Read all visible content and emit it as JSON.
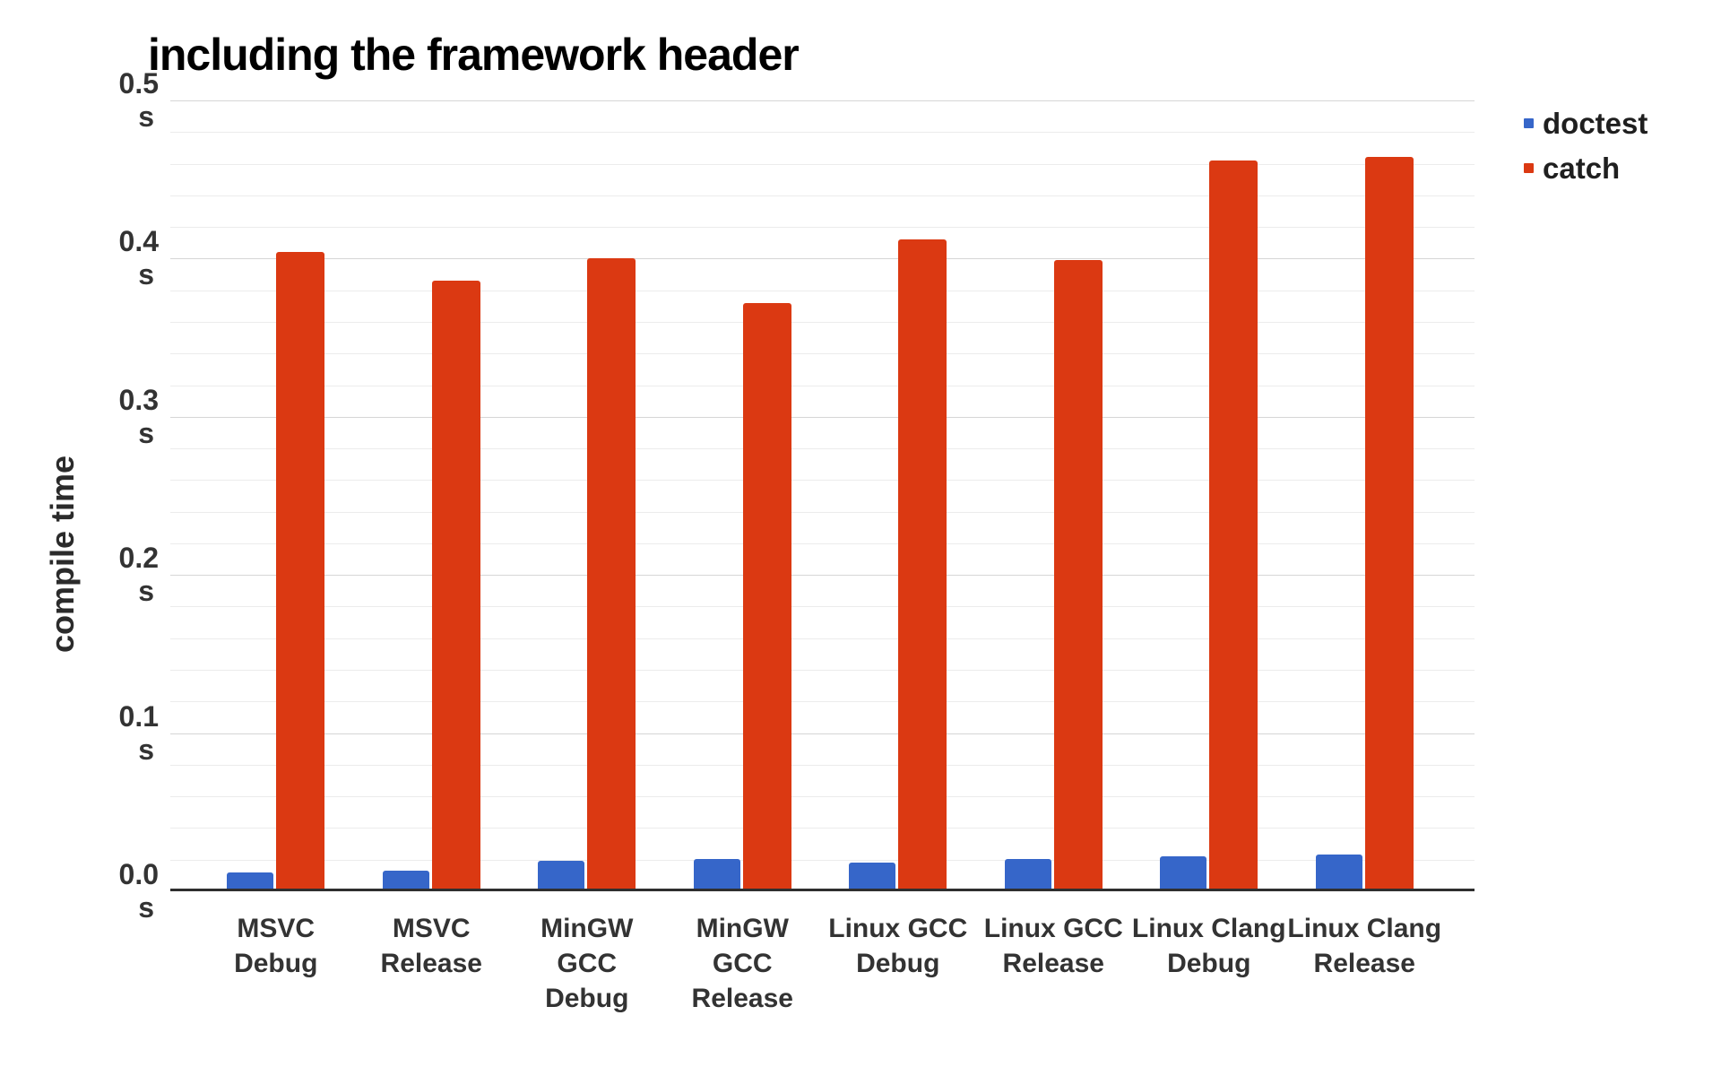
{
  "title": "including the framework header",
  "y_axis": {
    "label": "compile time",
    "unit": "s",
    "tick_labels": [
      "0.0",
      "0.1",
      "0.2",
      "0.3",
      "0.4",
      "0.5"
    ],
    "min": 0,
    "max": 0.5,
    "major_step": 0.1,
    "minor_step": 0.02
  },
  "legend": {
    "position": "right-top",
    "items": [
      {
        "label": "doctest",
        "color": "#3666c9"
      },
      {
        "label": "catch",
        "color": "#db3912"
      }
    ]
  },
  "chart_data": {
    "type": "bar",
    "title": "including the framework header",
    "xlabel": "",
    "ylabel": "compile time",
    "ylim": [
      0,
      0.5
    ],
    "grid": "horizontal, minor every 0.02 s, major every 0.1 s",
    "legend_position": "right-top",
    "categories": [
      "MSVC Debug",
      "MSVC Release",
      "MinGW GCC Debug",
      "MinGW GCC Release",
      "Linux GCC Debug",
      "Linux GCC Release",
      "Linux Clang Debug",
      "Linux Clang Release"
    ],
    "category_label_lines": [
      [
        "MSVC",
        "Debug"
      ],
      [
        "MSVC",
        "Release"
      ],
      [
        "MinGW GCC",
        "Debug"
      ],
      [
        "MinGW GCC",
        "Release"
      ],
      [
        "Linux GCC",
        "Debug"
      ],
      [
        "Linux GCC",
        "Release"
      ],
      [
        "Linux Clang",
        "Debug"
      ],
      [
        "Linux Clang",
        "Release"
      ]
    ],
    "unit": "s",
    "series": [
      {
        "name": "doctest",
        "color": "#3666c9",
        "values": [
          0.011,
          0.012,
          0.018,
          0.019,
          0.017,
          0.019,
          0.021,
          0.022
        ]
      },
      {
        "name": "catch",
        "color": "#db3912",
        "values": [
          0.403,
          0.385,
          0.399,
          0.371,
          0.411,
          0.398,
          0.461,
          0.463
        ]
      }
    ]
  }
}
